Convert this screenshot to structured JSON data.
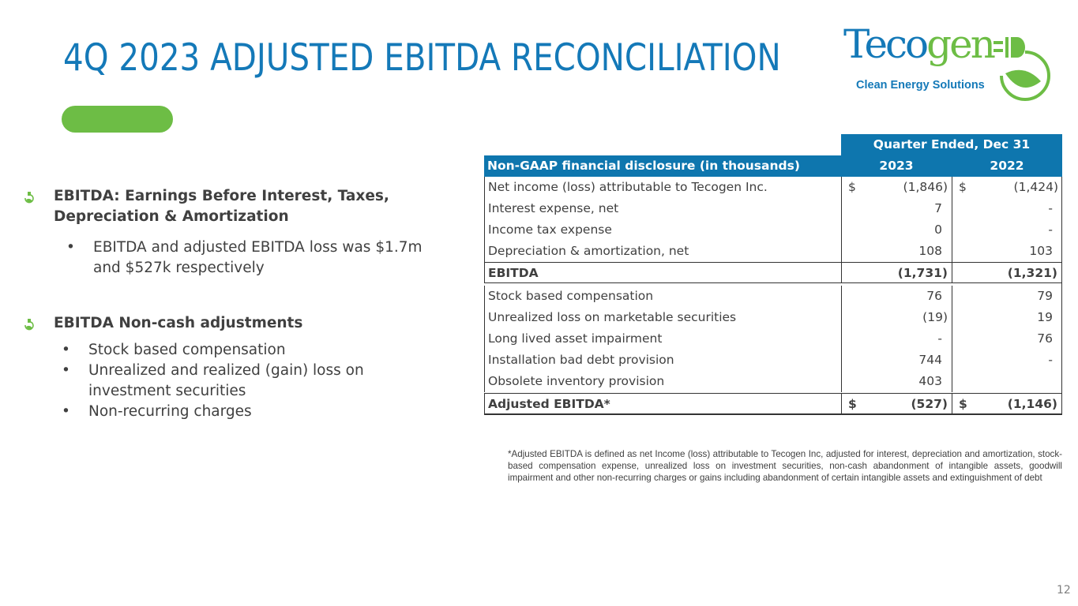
{
  "slide": {
    "title": "4Q 2023 ADJUSTED EBITDA RECONCILIATION",
    "page_number": "12",
    "accent_blue": "#1479b8",
    "accent_green": "#6dbd45"
  },
  "logo": {
    "word_blue": "Teco",
    "word_green": "gen",
    "tagline": "Clean Energy Solutions"
  },
  "bullets": [
    {
      "icon": "leaf-plug-icon",
      "text": "EBITDA: Earnings Before Interest, Taxes, Depreciation & Amortization",
      "subs": [
        "EBITDA and adjusted EBITDA loss was $1.7m and $527k respectively"
      ]
    },
    {
      "icon": "leaf-plug-icon",
      "text": "EBITDA Non-cash adjustments",
      "subs": [
        "Stock based compensation",
        "Unrealized and realized (gain) loss on investment securities",
        "Non-recurring charges"
      ]
    }
  ],
  "table": {
    "group_header": "Quarter Ended, Dec 31",
    "header": [
      "Non-GAAP financial disclosure (in thousands)",
      "2023",
      "2022"
    ],
    "rows": [
      {
        "label": "Net income (loss) attributable to Tecogen Inc.",
        "d1": "$",
        "v1": "(1,846)",
        "d2": "$",
        "v2": "(1,424)"
      },
      {
        "label": "Interest expense, net",
        "v1": "7",
        "v2": "-"
      },
      {
        "label": "Income tax expense",
        "v1": "0",
        "v2": "-"
      },
      {
        "label": "Depreciation & amortization, net",
        "v1": "108",
        "v2": "103"
      },
      {
        "label": "EBITDA",
        "v1": "(1,731)",
        "v2": "(1,321)"
      },
      {
        "label": "Stock based compensation",
        "v1": "76",
        "v2": "79"
      },
      {
        "label": "Unrealized loss on marketable securities",
        "v1": "(19)",
        "v2": "19"
      },
      {
        "label": "Long lived asset impairment",
        "v1": "-",
        "v2": "76"
      },
      {
        "label": "Installation bad debt provision",
        "v1": "744",
        "v2": "-"
      },
      {
        "label": "Obsolete inventory provision",
        "v1": "403",
        "v2": ""
      },
      {
        "label": "Adjusted EBITDA*",
        "d1": "$",
        "v1": "(527)",
        "d2": "$",
        "v2": "(1,146)"
      }
    ]
  },
  "footnote": "*Adjusted EBITDA is defined as net Income (loss) attributable to Tecogen Inc, adjusted for interest, depreciation and amortization, stock-based compensation expense, unrealized loss on investment securities, non-cash abandonment of intangible assets, goodwill impairment and other non-recurring charges or gains including abandonment of certain intangible assets and extinguishment of debt"
}
